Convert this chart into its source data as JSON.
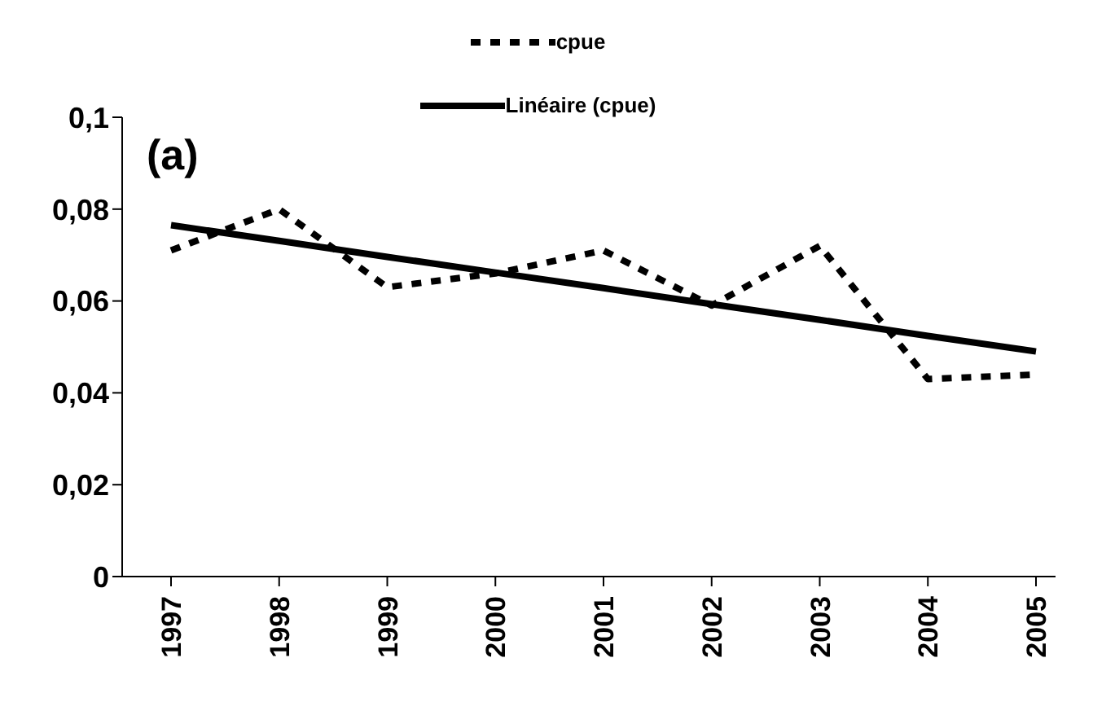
{
  "chart_data": {
    "type": "line",
    "categories": [
      "1997",
      "1998",
      "1999",
      "2000",
      "2001",
      "2002",
      "2003",
      "2004",
      "2005"
    ],
    "series": [
      {
        "name": "cpue",
        "color": "#000000",
        "line_style": "dashed",
        "values": [
          0.071,
          0.08,
          0.063,
          0.066,
          0.071,
          0.059,
          0.072,
          0.043,
          0.044
        ]
      },
      {
        "name": "Linéaire (cpue)",
        "color": "#000000",
        "line_style": "solid",
        "values": [
          0.0765,
          0.0731,
          0.0696,
          0.0662,
          0.0628,
          0.0593,
          0.0559,
          0.0524,
          0.049
        ]
      }
    ],
    "ylim": [
      0,
      0.1
    ],
    "yticks": [
      {
        "value": 0,
        "label": "0"
      },
      {
        "value": 0.02,
        "label": "0,02"
      },
      {
        "value": 0.04,
        "label": "0,04"
      },
      {
        "value": 0.06,
        "label": "0,06"
      },
      {
        "value": 0.08,
        "label": "0,08"
      },
      {
        "value": 0.1,
        "label": "0,1"
      }
    ],
    "annotations": [
      "(a)"
    ],
    "legend": "top",
    "marker": "none",
    "grid": false
  }
}
